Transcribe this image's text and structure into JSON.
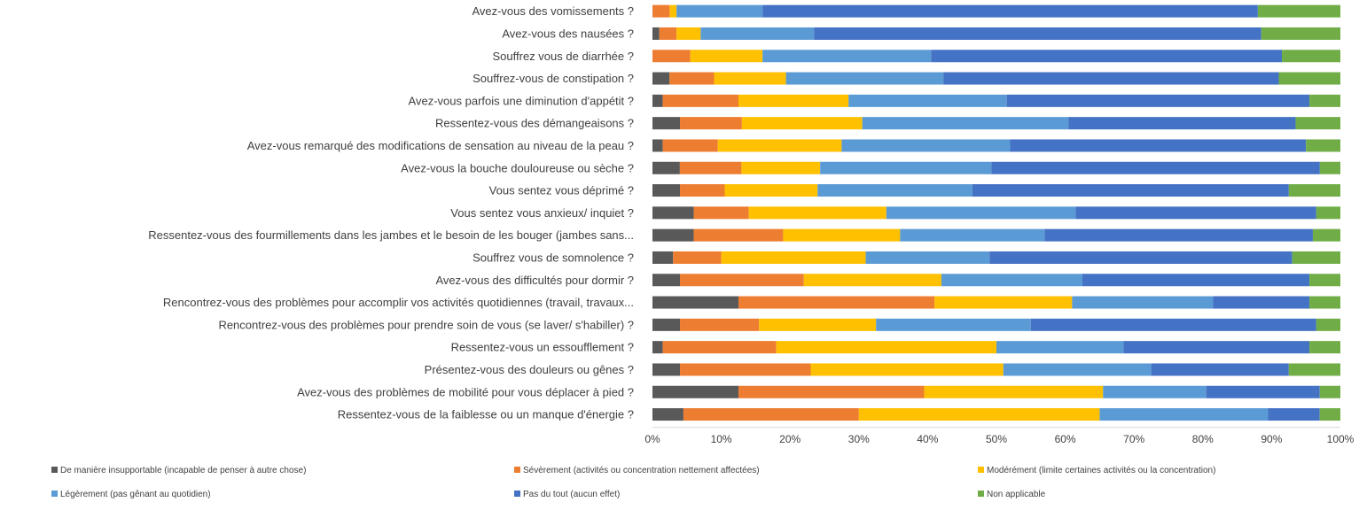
{
  "chart_data": {
    "type": "bar",
    "orientation": "horizontal",
    "stacked": "percent",
    "title": "",
    "xlabel": "",
    "ylabel": "",
    "xlim": [
      0,
      100
    ],
    "x_ticks": [
      "0%",
      "10%",
      "20%",
      "30%",
      "40%",
      "50%",
      "60%",
      "70%",
      "80%",
      "90%",
      "100%"
    ],
    "grid": false,
    "legend_position": "bottom",
    "categories": [
      "Avez-vous des vomissements ?",
      "Avez-vous des nausées ?",
      "Souffrez vous de diarrhée ?",
      "Souffrez-vous de constipation ?",
      "Avez-vous parfois une diminution d'appétit ?",
      "Ressentez-vous des démangeaisons ?",
      "Avez-vous remarqué des modifications de sensation au niveau de la peau ?",
      "Avez-vous la bouche douloureuse ou sèche ?",
      "Vous sentez vous déprimé ?",
      "Vous sentez vous anxieux/ inquiet ?",
      "Ressentez-vous des fourmillements dans les jambes et le besoin de les bouger (jambes sans...",
      "Souffrez vous de somnolence ?",
      "Avez-vous des difficultés pour dormir ?",
      "Rencontrez-vous des problèmes pour accomplir vos activités quotidiennes (travail, travaux...",
      "Rencontrez-vous des problèmes pour prendre soin de vous (se laver/ s'habiller) ?",
      "Ressentez-vous un essoufflement ?",
      "Présentez-vous des douleurs ou gênes ?",
      "Avez-vous des problèmes de mobilité pour vous déplacer à pied ?",
      "Ressentez-vous de la faiblesse ou un manque d'énergie ?"
    ],
    "series": [
      {
        "name": "De manière insupportable (incapable de penser à autre chose)",
        "color": "#595959",
        "values": [
          0,
          1,
          0,
          2.5,
          1.5,
          4,
          1.5,
          4,
          4,
          6,
          6,
          3,
          4,
          12.5,
          4,
          1.5,
          4,
          12.5,
          4.5
        ]
      },
      {
        "name": "Sévèrement (activités ou concentration nettement affectées)",
        "color": "#ED7D31",
        "values": [
          2.5,
          2.5,
          5.5,
          6.5,
          11,
          9,
          8,
          9,
          6.5,
          8,
          13,
          7,
          18,
          28.5,
          11.5,
          16.5,
          19,
          27,
          25.5
        ]
      },
      {
        "name": "Modérément (limite certaines activités ou la concentration)",
        "color": "#FFC000",
        "values": [
          1,
          3.5,
          10.5,
          10.5,
          16,
          17.5,
          18,
          11.5,
          13.5,
          20,
          17,
          21,
          20,
          20,
          17,
          32,
          28,
          26,
          35
        ]
      },
      {
        "name": "Légèrement (pas gênant au quotidien)",
        "color": "#5B9BD5",
        "values": [
          12.5,
          16.5,
          24.5,
          23,
          23,
          30,
          24.5,
          25,
          22.5,
          27.5,
          21,
          18,
          20.5,
          20.5,
          22.5,
          18.5,
          21.5,
          15,
          24.5
        ]
      },
      {
        "name": "Pas du tout (aucun effet)",
        "color": "#4472C4",
        "values": [
          72,
          65,
          51,
          49,
          44,
          33,
          43,
          48,
          46,
          35,
          39,
          44,
          33,
          14,
          41.5,
          27,
          20,
          16.5,
          7.5
        ]
      },
      {
        "name": "Non applicable",
        "color": "#70AD47",
        "values": [
          12,
          11.5,
          8.5,
          9,
          4.5,
          6.5,
          5,
          3,
          7.5,
          3.5,
          4,
          7,
          4.5,
          4.5,
          3.5,
          4.5,
          7.5,
          3,
          3
        ]
      }
    ]
  }
}
